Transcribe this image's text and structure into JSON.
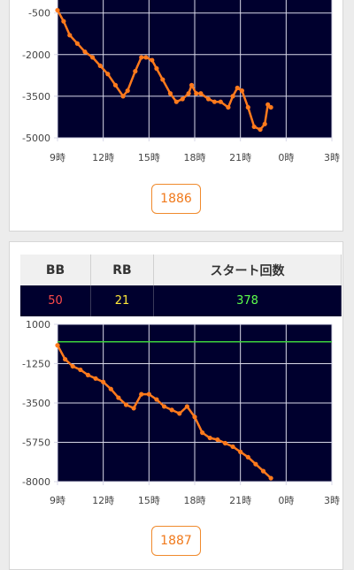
{
  "charts": [
    {
      "button_label": "1886"
    },
    {
      "stats": {
        "headers": [
          "BB",
          "RB",
          "スタート回数"
        ],
        "bb": "50",
        "rb": "21",
        "start_count": "378"
      },
      "button_label": "1887"
    }
  ],
  "colors": {
    "plot_bg": "#00002e",
    "line": "#ff7a1c",
    "marker": "#ff7a1c",
    "zero_line": "#3cd23c",
    "grid": "#d8d8e8",
    "button_text": "#f07a1c",
    "bb_value": "#ff4a4a",
    "rb_value": "#ffe83a",
    "start_value": "#5cff4c"
  },
  "chart_data": [
    {
      "type": "line",
      "x_unit": "hour",
      "xlim": [
        9,
        27
      ],
      "ylim": [
        -5000,
        0
      ],
      "y_ticks": [
        -500,
        -2000,
        -3500,
        -5000
      ],
      "x_ticks": [
        "9時",
        "12時",
        "15時",
        "18時",
        "21時",
        "0時",
        "3時"
      ],
      "reference_line": 0,
      "series": [
        {
          "x": [
            9.0,
            9.4,
            9.8,
            10.3,
            10.8,
            11.3,
            11.8,
            12.3,
            12.8,
            13.3,
            13.6,
            14.1,
            14.5,
            14.8,
            15.2,
            15.5,
            15.9,
            16.4,
            16.8,
            17.2,
            17.6,
            17.8,
            18.1,
            18.4,
            18.9,
            19.3,
            19.7,
            20.2,
            20.5,
            20.8,
            21.1,
            21.5,
            21.9,
            22.3,
            22.6,
            22.8,
            23.0
          ],
          "y": [
            -400,
            -800,
            -1300,
            -1600,
            -1900,
            -2100,
            -2400,
            -2700,
            -3100,
            -3500,
            -3300,
            -2600,
            -2100,
            -2100,
            -2200,
            -2500,
            -2900,
            -3400,
            -3700,
            -3600,
            -3400,
            -3100,
            -3400,
            -3400,
            -3600,
            -3700,
            -3700,
            -3900,
            -3500,
            -3200,
            -3300,
            -3900,
            -4600,
            -4700,
            -4500,
            -3800,
            -3900
          ]
        }
      ]
    },
    {
      "type": "line",
      "x_unit": "hour",
      "xlim": [
        9,
        27
      ],
      "ylim": [
        -8000,
        1000
      ],
      "y_ticks": [
        1000,
        -1250,
        -3500,
        -5750,
        -8000
      ],
      "x_ticks": [
        "9時",
        "12時",
        "15時",
        "18時",
        "21時",
        "0時",
        "3時"
      ],
      "reference_line": 0,
      "series": [
        {
          "x": [
            9.0,
            9.5,
            10.0,
            10.5,
            11.0,
            11.5,
            12.0,
            12.5,
            13.0,
            13.5,
            14.0,
            14.5,
            15.0,
            15.5,
            16.0,
            16.5,
            17.0,
            17.5,
            18.0,
            18.5,
            19.0,
            19.5,
            20.0,
            20.5,
            21.0,
            21.5,
            22.0,
            22.5,
            23.0
          ],
          "y": [
            -200,
            -1000,
            -1400,
            -1600,
            -1900,
            -2100,
            -2300,
            -2700,
            -3200,
            -3600,
            -3800,
            -3000,
            -3000,
            -3300,
            -3700,
            -3900,
            -4100,
            -3700,
            -4300,
            -5200,
            -5500,
            -5600,
            -5800,
            -6000,
            -6300,
            -6600,
            -7000,
            -7400,
            -7800
          ]
        }
      ]
    }
  ]
}
